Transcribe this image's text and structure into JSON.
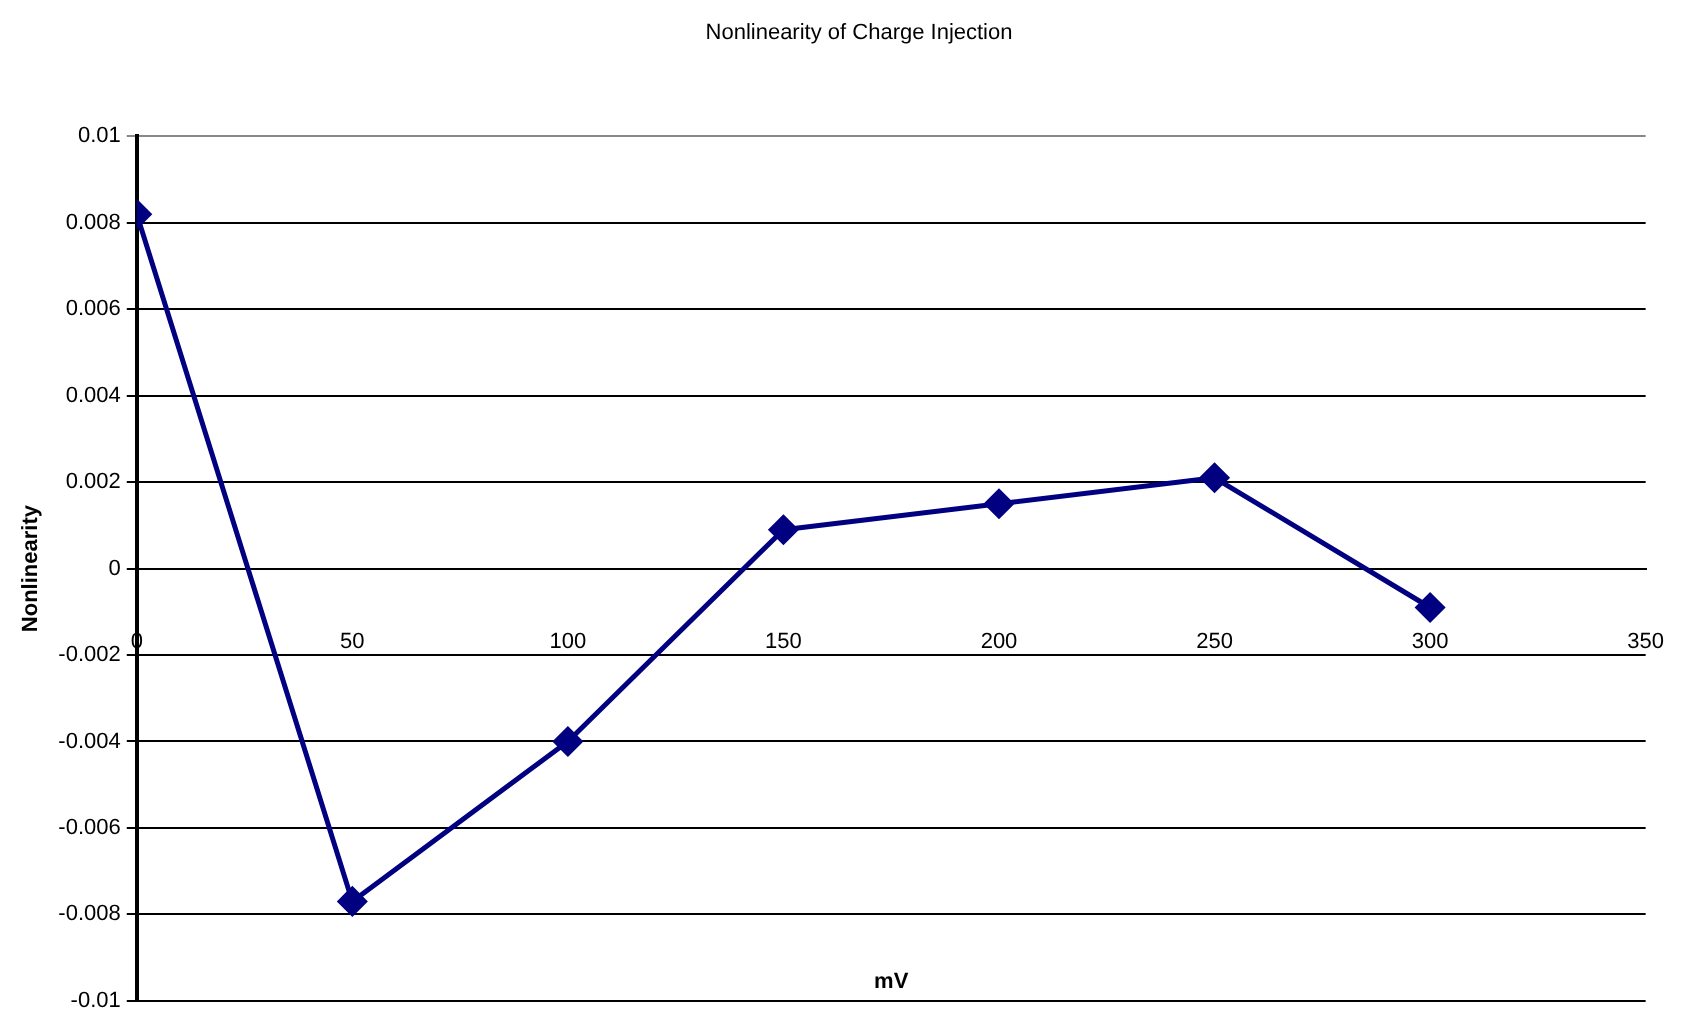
{
  "chart_data": {
    "type": "line",
    "title": "Nonlinearity of Charge Injection",
    "xlabel": "mV",
    "ylabel": "Nonlinearity",
    "x": [
      0,
      50,
      100,
      150,
      200,
      250,
      300
    ],
    "series": [
      {
        "color": "#000080",
        "values": [
          0.0082,
          -0.0077,
          -0.004,
          0.0009,
          0.0015,
          0.0021,
          -0.0009
        ]
      }
    ],
    "xlim": [
      0,
      350
    ],
    "xticks": [
      0,
      50,
      100,
      150,
      200,
      250,
      300,
      350
    ],
    "ylim": [
      -0.01,
      0.01
    ],
    "yticks": [
      -0.01,
      -0.008,
      -0.006,
      -0.004,
      -0.002,
      0,
      0.002,
      0.004,
      0.006,
      0.008,
      0.01
    ],
    "grid": "y",
    "legend": false,
    "marker": "diamond",
    "line_style": "solid"
  }
}
